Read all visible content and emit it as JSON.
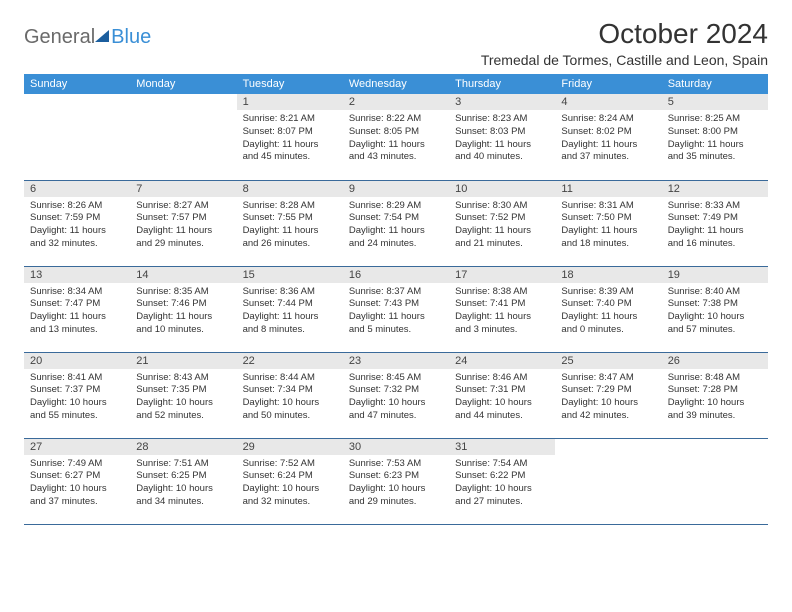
{
  "logo": {
    "part1": "General",
    "part2": "Blue"
  },
  "title": "October 2024",
  "location": "Tremedal de Tormes, Castille and Leon, Spain",
  "headers": [
    "Sunday",
    "Monday",
    "Tuesday",
    "Wednesday",
    "Thursday",
    "Friday",
    "Saturday"
  ],
  "colors": {
    "header_bg": "#3a8fd6",
    "header_fg": "#ffffff",
    "daynum_bg": "#e8e8e8",
    "rule": "#3a6a9a"
  },
  "weeks": [
    [
      null,
      null,
      {
        "n": "1",
        "sr": "8:21 AM",
        "ss": "8:07 PM",
        "dl": "11 hours and 45 minutes."
      },
      {
        "n": "2",
        "sr": "8:22 AM",
        "ss": "8:05 PM",
        "dl": "11 hours and 43 minutes."
      },
      {
        "n": "3",
        "sr": "8:23 AM",
        "ss": "8:03 PM",
        "dl": "11 hours and 40 minutes."
      },
      {
        "n": "4",
        "sr": "8:24 AM",
        "ss": "8:02 PM",
        "dl": "11 hours and 37 minutes."
      },
      {
        "n": "5",
        "sr": "8:25 AM",
        "ss": "8:00 PM",
        "dl": "11 hours and 35 minutes."
      }
    ],
    [
      {
        "n": "6",
        "sr": "8:26 AM",
        "ss": "7:59 PM",
        "dl": "11 hours and 32 minutes."
      },
      {
        "n": "7",
        "sr": "8:27 AM",
        "ss": "7:57 PM",
        "dl": "11 hours and 29 minutes."
      },
      {
        "n": "8",
        "sr": "8:28 AM",
        "ss": "7:55 PM",
        "dl": "11 hours and 26 minutes."
      },
      {
        "n": "9",
        "sr": "8:29 AM",
        "ss": "7:54 PM",
        "dl": "11 hours and 24 minutes."
      },
      {
        "n": "10",
        "sr": "8:30 AM",
        "ss": "7:52 PM",
        "dl": "11 hours and 21 minutes."
      },
      {
        "n": "11",
        "sr": "8:31 AM",
        "ss": "7:50 PM",
        "dl": "11 hours and 18 minutes."
      },
      {
        "n": "12",
        "sr": "8:33 AM",
        "ss": "7:49 PM",
        "dl": "11 hours and 16 minutes."
      }
    ],
    [
      {
        "n": "13",
        "sr": "8:34 AM",
        "ss": "7:47 PM",
        "dl": "11 hours and 13 minutes."
      },
      {
        "n": "14",
        "sr": "8:35 AM",
        "ss": "7:46 PM",
        "dl": "11 hours and 10 minutes."
      },
      {
        "n": "15",
        "sr": "8:36 AM",
        "ss": "7:44 PM",
        "dl": "11 hours and 8 minutes."
      },
      {
        "n": "16",
        "sr": "8:37 AM",
        "ss": "7:43 PM",
        "dl": "11 hours and 5 minutes."
      },
      {
        "n": "17",
        "sr": "8:38 AM",
        "ss": "7:41 PM",
        "dl": "11 hours and 3 minutes."
      },
      {
        "n": "18",
        "sr": "8:39 AM",
        "ss": "7:40 PM",
        "dl": "11 hours and 0 minutes."
      },
      {
        "n": "19",
        "sr": "8:40 AM",
        "ss": "7:38 PM",
        "dl": "10 hours and 57 minutes."
      }
    ],
    [
      {
        "n": "20",
        "sr": "8:41 AM",
        "ss": "7:37 PM",
        "dl": "10 hours and 55 minutes."
      },
      {
        "n": "21",
        "sr": "8:43 AM",
        "ss": "7:35 PM",
        "dl": "10 hours and 52 minutes."
      },
      {
        "n": "22",
        "sr": "8:44 AM",
        "ss": "7:34 PM",
        "dl": "10 hours and 50 minutes."
      },
      {
        "n": "23",
        "sr": "8:45 AM",
        "ss": "7:32 PM",
        "dl": "10 hours and 47 minutes."
      },
      {
        "n": "24",
        "sr": "8:46 AM",
        "ss": "7:31 PM",
        "dl": "10 hours and 44 minutes."
      },
      {
        "n": "25",
        "sr": "8:47 AM",
        "ss": "7:29 PM",
        "dl": "10 hours and 42 minutes."
      },
      {
        "n": "26",
        "sr": "8:48 AM",
        "ss": "7:28 PM",
        "dl": "10 hours and 39 minutes."
      }
    ],
    [
      {
        "n": "27",
        "sr": "7:49 AM",
        "ss": "6:27 PM",
        "dl": "10 hours and 37 minutes."
      },
      {
        "n": "28",
        "sr": "7:51 AM",
        "ss": "6:25 PM",
        "dl": "10 hours and 34 minutes."
      },
      {
        "n": "29",
        "sr": "7:52 AM",
        "ss": "6:24 PM",
        "dl": "10 hours and 32 minutes."
      },
      {
        "n": "30",
        "sr": "7:53 AM",
        "ss": "6:23 PM",
        "dl": "10 hours and 29 minutes."
      },
      {
        "n": "31",
        "sr": "7:54 AM",
        "ss": "6:22 PM",
        "dl": "10 hours and 27 minutes."
      },
      null,
      null
    ]
  ],
  "labels": {
    "sunrise": "Sunrise:",
    "sunset": "Sunset:",
    "daylight": "Daylight:"
  }
}
